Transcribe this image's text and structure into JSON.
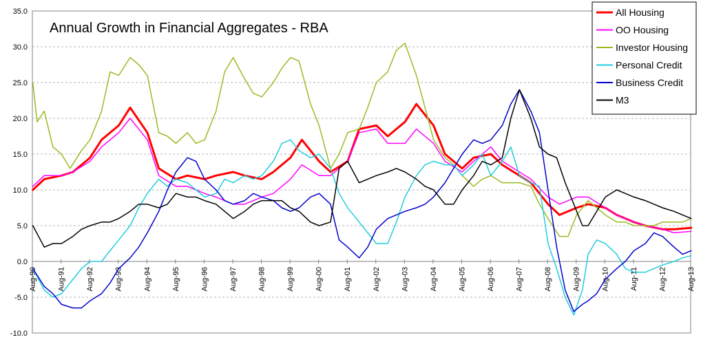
{
  "chart_data": {
    "type": "line",
    "title": "Annual Growth in Financial Aggregates - RBA",
    "xlabel": "",
    "ylabel": "",
    "ylim": [
      -10,
      35
    ],
    "y_ticks": [
      "35.0",
      "30.0",
      "25.0",
      "20.0",
      "15.0",
      "10.0",
      "5.0",
      "0.0",
      "-5.0",
      "-10.0"
    ],
    "x_start": 1990.583,
    "x_end": 2013.583,
    "categories": [
      "Aug-90",
      "Aug-91",
      "Aug-92",
      "Aug-93",
      "Aug-94",
      "Aug-95",
      "Aug-96",
      "Aug-97",
      "Aug-98",
      "Aug-99",
      "Aug-00",
      "Aug-01",
      "Aug-02",
      "Aug-03",
      "Aug-04",
      "Aug-05",
      "Aug-06",
      "Aug-07",
      "Aug-08",
      "Aug-09",
      "Aug-10",
      "Aug-11",
      "Aug-12",
      "Aug-13"
    ],
    "legend_position": "top-right",
    "series": [
      {
        "name": "All Housing",
        "color": "#ff0000",
        "width": 3,
        "x": [
          1990.6,
          1991.0,
          1991.6,
          1992.0,
          1992.6,
          1993.0,
          1993.6,
          1994.0,
          1994.6,
          1995.0,
          1995.6,
          1996.0,
          1996.6,
          1997.0,
          1997.6,
          1998.0,
          1998.6,
          1999.0,
          1999.6,
          2000.0,
          2000.6,
          2001.0,
          2001.6,
          2002.0,
          2002.6,
          2003.0,
          2003.6,
          2004.0,
          2004.6,
          2005.0,
          2005.6,
          2006.0,
          2006.6,
          2007.0,
          2007.6,
          2008.0,
          2008.6,
          2009.0,
          2009.6,
          2010.0,
          2010.6,
          2011.0,
          2011.6,
          2012.0,
          2012.6,
          2013.0,
          2013.6
        ],
        "values": [
          10.0,
          11.5,
          12.0,
          12.5,
          14.5,
          17.0,
          19.0,
          21.5,
          18.0,
          13.0,
          11.5,
          12.0,
          11.5,
          12.0,
          12.5,
          12.0,
          11.5,
          12.5,
          14.5,
          17.0,
          14.0,
          12.5,
          14.0,
          18.5,
          19.0,
          17.5,
          19.5,
          22.0,
          19.0,
          15.0,
          13.0,
          14.5,
          15.0,
          13.5,
          12.0,
          11.0,
          8.0,
          6.5,
          7.5,
          8.0,
          7.5,
          6.5,
          5.5,
          5.0,
          4.5,
          4.5,
          4.7
        ]
      },
      {
        "name": "OO Housing",
        "color": "#ff00ff",
        "width": 1.5,
        "x": [
          1990.6,
          1991.0,
          1991.6,
          1992.0,
          1992.6,
          1993.0,
          1993.6,
          1994.0,
          1994.6,
          1995.0,
          1995.6,
          1996.0,
          1996.6,
          1997.0,
          1997.6,
          1998.0,
          1998.6,
          1999.0,
          1999.6,
          2000.0,
          2000.6,
          2001.0,
          2001.6,
          2002.0,
          2002.6,
          2003.0,
          2003.6,
          2004.0,
          2004.6,
          2005.0,
          2005.6,
          2006.0,
          2006.6,
          2007.0,
          2007.6,
          2008.0,
          2008.6,
          2009.0,
          2009.6,
          2010.0,
          2010.6,
          2011.0,
          2011.6,
          2012.0,
          2012.6,
          2013.0,
          2013.6
        ],
        "values": [
          10.5,
          12.0,
          12.0,
          12.5,
          14.0,
          16.0,
          18.0,
          20.0,
          17.0,
          12.0,
          10.5,
          10.5,
          9.5,
          9.0,
          8.0,
          8.0,
          9.0,
          9.5,
          11.5,
          13.5,
          12.0,
          12.0,
          14.0,
          18.0,
          18.5,
          16.5,
          16.5,
          18.5,
          16.5,
          14.0,
          12.5,
          14.0,
          16.0,
          14.0,
          12.5,
          11.5,
          9.0,
          8.0,
          9.0,
          9.0,
          7.5,
          6.5,
          5.5,
          5.0,
          4.5,
          4.0,
          4.2
        ]
      },
      {
        "name": "Investor Housing",
        "color": "#99bb22",
        "width": 1.5,
        "x": [
          1990.6,
          1990.75,
          1991.0,
          1991.3,
          1991.6,
          1991.9,
          1992.3,
          1992.6,
          1993.0,
          1993.3,
          1993.6,
          1994.0,
          1994.3,
          1994.6,
          1995.0,
          1995.3,
          1995.6,
          1996.0,
          1996.3,
          1996.6,
          1997.0,
          1997.3,
          1997.6,
          1998.0,
          1998.3,
          1998.6,
          1999.0,
          1999.3,
          1999.6,
          1999.9,
          2000.3,
          2000.6,
          2001.0,
          2001.3,
          2001.6,
          2002.0,
          2002.3,
          2002.6,
          2003.0,
          2003.3,
          2003.6,
          2004.0,
          2004.3,
          2004.6,
          2005.0,
          2005.3,
          2005.6,
          2006.0,
          2006.3,
          2006.6,
          2007.0,
          2007.3,
          2007.6,
          2008.0,
          2008.3,
          2008.6,
          2009.0,
          2009.3,
          2009.6,
          2010.0,
          2010.3,
          2010.6,
          2011.0,
          2011.3,
          2011.6,
          2012.0,
          2012.3,
          2012.6,
          2013.0,
          2013.3,
          2013.6
        ],
        "values": [
          25.0,
          19.5,
          21.0,
          16.0,
          15.0,
          13.0,
          15.5,
          17.0,
          21.0,
          26.5,
          26.0,
          28.5,
          27.5,
          26.0,
          18.0,
          17.5,
          16.5,
          18.0,
          16.5,
          17.0,
          21.0,
          26.5,
          28.5,
          25.5,
          23.5,
          23.0,
          25.0,
          27.0,
          28.5,
          28.0,
          22.0,
          19.0,
          13.0,
          15.0,
          18.0,
          18.5,
          21.5,
          25.0,
          26.5,
          29.5,
          30.5,
          26.0,
          21.5,
          17.0,
          14.5,
          13.5,
          12.0,
          10.5,
          11.5,
          12.0,
          11.0,
          11.0,
          11.0,
          10.5,
          8.0,
          6.0,
          3.5,
          3.5,
          6.5,
          8.5,
          7.5,
          6.5,
          5.5,
          5.5,
          5.0,
          5.0,
          5.0,
          5.5,
          5.5,
          5.5,
          6.0
        ]
      },
      {
        "name": "Personal Credit",
        "color": "#22ccdd",
        "width": 1.5,
        "x": [
          1990.6,
          1991.0,
          1991.3,
          1991.6,
          1992.0,
          1992.3,
          1992.6,
          1993.0,
          1993.3,
          1993.6,
          1994.0,
          1994.3,
          1994.6,
          1995.0,
          1995.3,
          1995.6,
          1996.0,
          1996.3,
          1996.6,
          1997.0,
          1997.3,
          1997.6,
          1998.0,
          1998.3,
          1998.6,
          1999.0,
          1999.3,
          1999.6,
          1999.9,
          2000.3,
          2000.6,
          2001.0,
          2001.3,
          2001.6,
          2002.0,
          2002.3,
          2002.6,
          2003.0,
          2003.3,
          2003.6,
          2004.0,
          2004.3,
          2004.6,
          2005.0,
          2005.3,
          2005.6,
          2006.0,
          2006.3,
          2006.6,
          2007.0,
          2007.3,
          2007.6,
          2008.0,
          2008.3,
          2008.6,
          2008.9,
          2009.2,
          2009.5,
          2009.8,
          2010.0,
          2010.3,
          2010.6,
          2011.0,
          2011.3,
          2011.6,
          2012.0,
          2012.3,
          2012.6,
          2013.0,
          2013.3,
          2013.6
        ],
        "values": [
          -1.0,
          -4.0,
          -5.0,
          -4.5,
          -2.5,
          -1.0,
          0.0,
          0.0,
          1.5,
          3.0,
          5.0,
          7.5,
          9.5,
          11.5,
          10.5,
          11.5,
          11.0,
          10.0,
          9.0,
          9.5,
          11.5,
          11.0,
          12.0,
          11.5,
          12.0,
          14.0,
          16.5,
          17.0,
          15.5,
          14.5,
          15.0,
          13.0,
          9.5,
          7.5,
          5.5,
          4.0,
          2.5,
          2.5,
          5.5,
          9.0,
          12.0,
          13.5,
          14.0,
          13.5,
          13.5,
          12.0,
          13.5,
          15.0,
          12.0,
          14.0,
          16.0,
          12.0,
          11.0,
          10.5,
          2.5,
          -1.0,
          -5.0,
          -7.5,
          -4.0,
          1.0,
          3.0,
          2.5,
          1.0,
          -1.0,
          -1.5,
          -1.5,
          -1.0,
          -0.5,
          0.0,
          0.5,
          0.8
        ]
      },
      {
        "name": "Business Credit",
        "color": "#0000cc",
        "width": 1.5,
        "x": [
          1990.6,
          1991.0,
          1991.3,
          1991.6,
          1992.0,
          1992.3,
          1992.6,
          1993.0,
          1993.3,
          1993.6,
          1994.0,
          1994.3,
          1994.6,
          1995.0,
          1995.3,
          1995.6,
          1996.0,
          1996.3,
          1996.6,
          1997.0,
          1997.3,
          1997.6,
          1998.0,
          1998.3,
          1998.6,
          1999.0,
          1999.3,
          1999.6,
          1999.9,
          2000.3,
          2000.6,
          2001.0,
          2001.3,
          2001.6,
          2002.0,
          2002.3,
          2002.6,
          2003.0,
          2003.3,
          2003.6,
          2004.0,
          2004.3,
          2004.6,
          2005.0,
          2005.3,
          2005.6,
          2006.0,
          2006.3,
          2006.6,
          2007.0,
          2007.3,
          2007.6,
          2008.0,
          2008.3,
          2008.6,
          2008.9,
          2009.2,
          2009.5,
          2009.8,
          2010.0,
          2010.3,
          2010.6,
          2011.0,
          2011.3,
          2011.6,
          2012.0,
          2012.3,
          2012.6,
          2013.0,
          2013.3,
          2013.6
        ],
        "values": [
          -1.0,
          -3.5,
          -4.5,
          -6.0,
          -6.5,
          -6.5,
          -5.5,
          -4.5,
          -3.0,
          -1.0,
          0.5,
          2.0,
          4.0,
          7.0,
          10.0,
          12.5,
          14.5,
          14.0,
          11.5,
          10.0,
          8.5,
          8.0,
          8.5,
          9.5,
          9.0,
          8.5,
          7.5,
          7.0,
          7.5,
          9.0,
          9.5,
          8.0,
          3.0,
          2.0,
          0.5,
          2.0,
          4.5,
          6.0,
          6.5,
          7.0,
          7.5,
          8.0,
          9.0,
          11.0,
          13.0,
          15.0,
          17.0,
          16.5,
          17.0,
          19.0,
          22.0,
          24.0,
          21.0,
          18.0,
          10.0,
          2.0,
          -4.0,
          -7.0,
          -6.0,
          -5.5,
          -4.5,
          -2.5,
          -1.0,
          0.0,
          1.5,
          2.5,
          4.0,
          3.5,
          2.0,
          1.0,
          1.5
        ]
      },
      {
        "name": "M3",
        "color": "#000000",
        "width": 1.5,
        "x": [
          1990.6,
          1991.0,
          1991.3,
          1991.6,
          1992.0,
          1992.3,
          1992.6,
          1993.0,
          1993.3,
          1993.6,
          1994.0,
          1994.3,
          1994.6,
          1995.0,
          1995.3,
          1995.6,
          1996.0,
          1996.3,
          1996.6,
          1997.0,
          1997.3,
          1997.6,
          1998.0,
          1998.3,
          1998.6,
          1999.0,
          1999.3,
          1999.6,
          1999.9,
          2000.3,
          2000.6,
          2001.0,
          2001.3,
          2001.6,
          2002.0,
          2002.3,
          2002.6,
          2003.0,
          2003.3,
          2003.6,
          2004.0,
          2004.3,
          2004.6,
          2005.0,
          2005.3,
          2005.6,
          2006.0,
          2006.3,
          2006.6,
          2007.0,
          2007.3,
          2007.6,
          2008.0,
          2008.3,
          2008.6,
          2008.9,
          2009.2,
          2009.5,
          2009.8,
          2010.0,
          2010.3,
          2010.6,
          2011.0,
          2011.3,
          2011.6,
          2012.0,
          2012.3,
          2012.6,
          2013.0,
          2013.3,
          2013.6
        ],
        "values": [
          5.0,
          2.0,
          2.5,
          2.5,
          3.5,
          4.5,
          5.0,
          5.5,
          5.5,
          6.0,
          7.0,
          8.0,
          8.0,
          7.5,
          8.0,
          9.5,
          9.0,
          9.0,
          8.5,
          8.0,
          7.0,
          6.0,
          7.0,
          8.0,
          8.5,
          8.5,
          8.5,
          7.5,
          7.0,
          5.5,
          5.0,
          5.5,
          13.0,
          14.0,
          11.0,
          11.5,
          12.0,
          12.5,
          13.0,
          12.5,
          11.5,
          10.5,
          10.0,
          8.0,
          8.0,
          10.0,
          12.0,
          14.0,
          13.5,
          14.5,
          20.0,
          24.0,
          20.0,
          16.0,
          15.0,
          14.5,
          11.0,
          8.0,
          5.0,
          5.0,
          7.0,
          9.0,
          10.0,
          9.5,
          9.0,
          8.5,
          8.0,
          7.5,
          7.0,
          6.5,
          6.0
        ]
      }
    ]
  }
}
